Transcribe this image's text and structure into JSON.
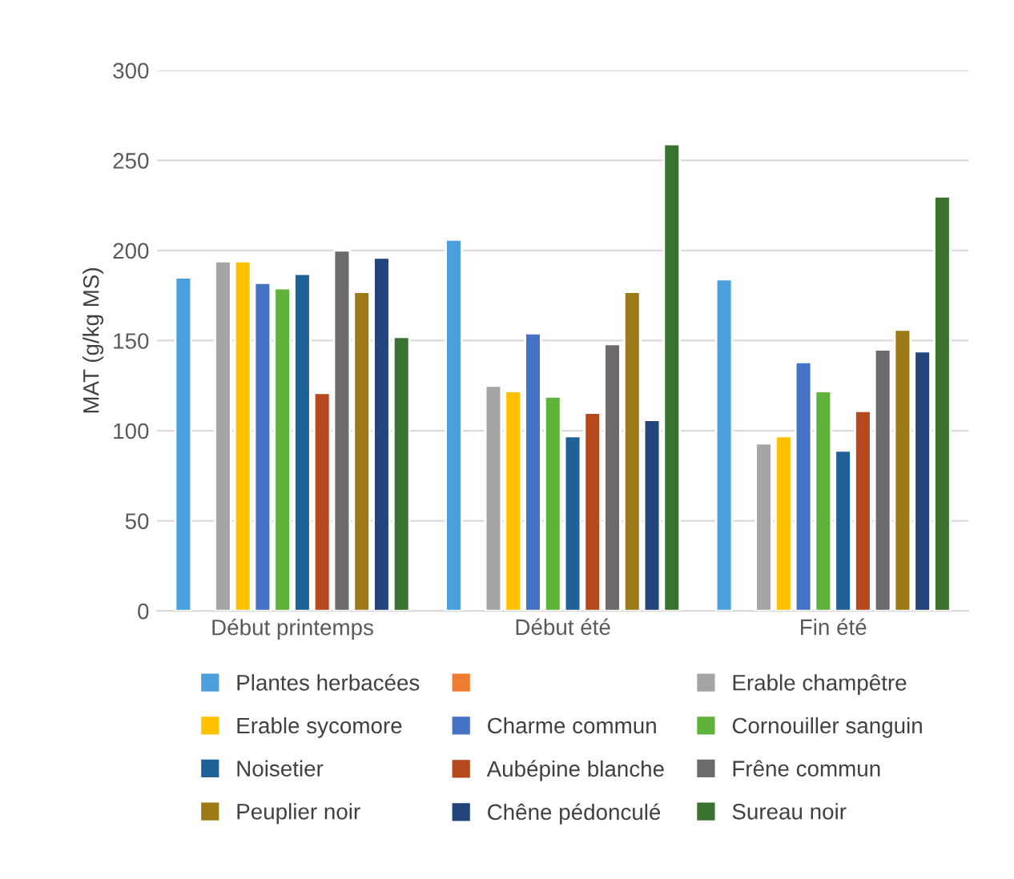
{
  "chart_data": {
    "type": "bar",
    "ylabel": "MAT (g/kg MS)",
    "categories": [
      "Début printemps",
      "Début été",
      "Fin été"
    ],
    "series": [
      {
        "name": "Plantes herbacées",
        "color": "#4a9fdc",
        "values": [
          185,
          206,
          184
        ]
      },
      {
        "color": "#ed7d31",
        "values": [
          null,
          null,
          null
        ]
      },
      {
        "name": "Erable champêtre",
        "color": "#a5a5a5",
        "values": [
          194,
          125,
          93
        ]
      },
      {
        "name": "Erable sycomore",
        "color": "#ffc000",
        "values": [
          194,
          122,
          97
        ]
      },
      {
        "name": "Charme commun",
        "color": "#4472c4",
        "values": [
          182,
          154,
          138
        ]
      },
      {
        "name": "Cornouiller sanguin",
        "color": "#5fb33a",
        "values": [
          179,
          119,
          122
        ]
      },
      {
        "name": "Noisetier",
        "color": "#1f6199",
        "values": [
          187,
          97,
          89
        ]
      },
      {
        "name": "Aubépine blanche",
        "color": "#b5481c",
        "values": [
          121,
          110,
          111
        ]
      },
      {
        "name": "Frêne commun",
        "color": "#6b6b6b",
        "values": [
          200,
          148,
          145
        ]
      },
      {
        "name": "Peuplier noir",
        "color": "#9e7a16",
        "values": [
          177,
          177,
          156
        ]
      },
      {
        "name": "Chêne pédonculé",
        "color": "#23457c",
        "values": [
          196,
          106,
          144
        ]
      },
      {
        "name": "Sureau noir",
        "color": "#3a7230",
        "values": [
          152,
          259,
          230
        ]
      }
    ],
    "ylim": [
      0,
      300
    ],
    "yticks": [
      0,
      50,
      100,
      150,
      200,
      250,
      300
    ],
    "grid": "y",
    "legend": "bottom"
  }
}
